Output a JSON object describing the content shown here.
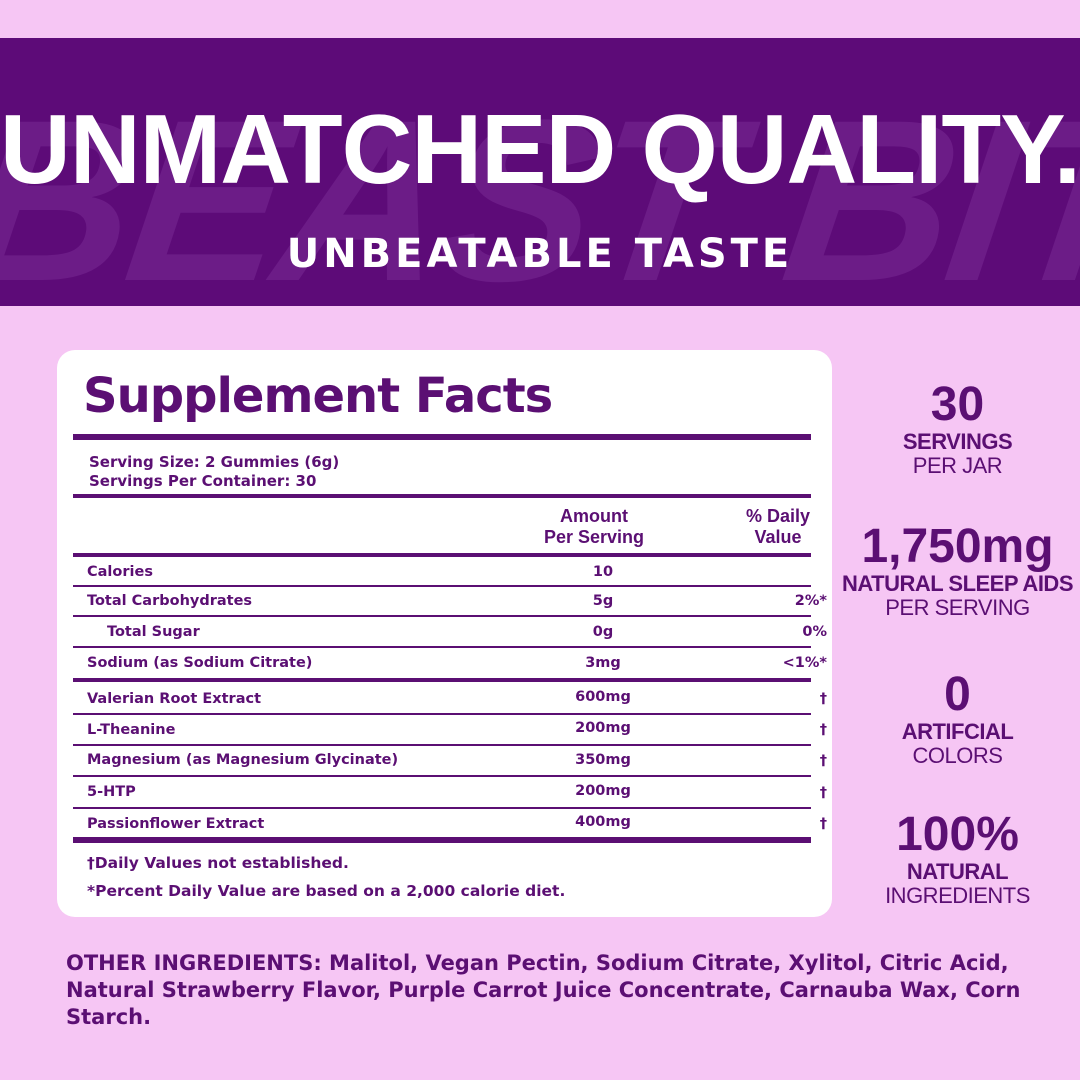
{
  "banner": {
    "background_text": "BEAST BITE",
    "headline": "UNMATCHED QUALITY.",
    "subheadline": "UNBEATABLE TASTE"
  },
  "facts": {
    "title": "Supplement Facts",
    "serving_size": "Serving Size: 2 Gummies (6g)",
    "servings_per_container": "Servings Per Container: 30",
    "col_amount_line1": "Amount",
    "col_amount_line2": "Per Serving",
    "col_dv_line1": "% Daily",
    "col_dv_line2": "Value",
    "rows": [
      {
        "name": "Calories",
        "amount": "10",
        "dv": ""
      },
      {
        "name": "Total Carbohydrates",
        "amount": "5g",
        "dv": "2%*"
      },
      {
        "name": "Total Sugar",
        "amount": "0g",
        "dv": "0%"
      },
      {
        "name": "Sodium (as Sodium Citrate)",
        "amount": "3mg",
        "dv": "<1%*"
      },
      {
        "name": "Valerian Root Extract",
        "amount": "600mg",
        "dv": "†"
      },
      {
        "name": "L-Theanine",
        "amount": "200mg",
        "dv": "†"
      },
      {
        "name": "Magnesium (as Magnesium Glycinate)",
        "amount": "350mg",
        "dv": "†"
      },
      {
        "name": "5-HTP",
        "amount": "200mg",
        "dv": "†"
      },
      {
        "name": "Passionflower Extract",
        "amount": "400mg",
        "dv": "†"
      }
    ],
    "footnote_1": "†Daily Values not established.",
    "footnote_2": "*Percent Daily Value are based on a 2,000 calorie diet."
  },
  "stats": [
    {
      "big": "30",
      "label": "SERVINGS",
      "sub": "PER JAR"
    },
    {
      "big": "1,750mg",
      "label": "NATURAL SLEEP AIDS",
      "sub": "PER SERVING"
    },
    {
      "big": "0",
      "label": "ARTIFCIAL",
      "sub": "COLORS"
    },
    {
      "big": "100%",
      "label": "NATURAL",
      "sub": "INGREDIENTS"
    }
  ],
  "other_ingredients": "OTHER INGREDIENTS: Malitol, Vegan Pectin, Sodium Citrate, Xylitol, Citric Acid, Natural Strawberry Flavor, Purple Carrot Juice Concentrate, Carnauba Wax, Corn Starch.",
  "colors": {
    "background": "#f6c6f4",
    "banner": "#5d0b78",
    "text_purple": "#5b0f73",
    "card": "#ffffff"
  }
}
